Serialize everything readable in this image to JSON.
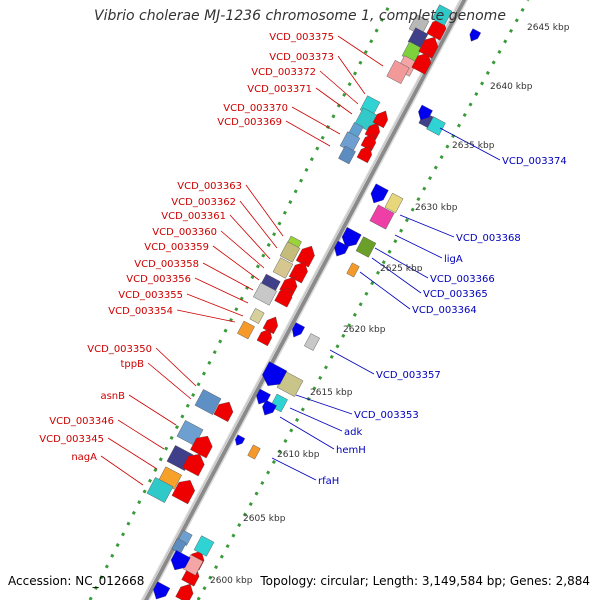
{
  "title": "Vibrio cholerae MJ-1236 chromosome 1, complete genome",
  "footer": {
    "accession": "Accession: NC_012668",
    "topology": "Topology: circular; Length: 3,149,584 bp; Genes: 2,884"
  },
  "colors": {
    "forward_label": "#cc0000",
    "reverse_label": "#0000bb",
    "backbone": "#8a8a8a",
    "scale_dots": "#3a9a3a"
  },
  "scale_ticks": [
    {
      "label": "2600 kbp",
      "pos": 2600
    },
    {
      "label": "2605 kbp",
      "pos": 2605
    },
    {
      "label": "2610 kbp",
      "pos": 2610
    },
    {
      "label": "2615 kbp",
      "pos": 2615
    },
    {
      "label": "2620 kbp",
      "pos": 2620
    },
    {
      "label": "2625 kbp",
      "pos": 2625
    },
    {
      "label": "2630 kbp",
      "pos": 2630
    },
    {
      "label": "2635 kbp",
      "pos": 2635
    },
    {
      "label": "2640 kbp",
      "pos": 2640
    },
    {
      "label": "2645 kbp",
      "pos": 2645
    }
  ],
  "forward_labels": [
    "VCD_003375",
    "VCD_003373",
    "VCD_003372",
    "VCD_003371",
    "VCD_003370",
    "VCD_003369",
    "VCD_003363",
    "VCD_003362",
    "VCD_003361",
    "VCD_003360",
    "VCD_003359",
    "VCD_003358",
    "VCD_003356",
    "VCD_003355",
    "VCD_003354",
    "VCD_003350",
    "tppB",
    "asnB",
    "VCD_003346",
    "VCD_003345",
    "nagA"
  ],
  "reverse_labels": [
    "VCD_003374",
    "VCD_003368",
    "ligA",
    "VCD_003366",
    "VCD_003365",
    "VCD_003364",
    "VCD_003357",
    "VCD_003353",
    "adk",
    "hemH",
    "rfaH"
  ]
}
